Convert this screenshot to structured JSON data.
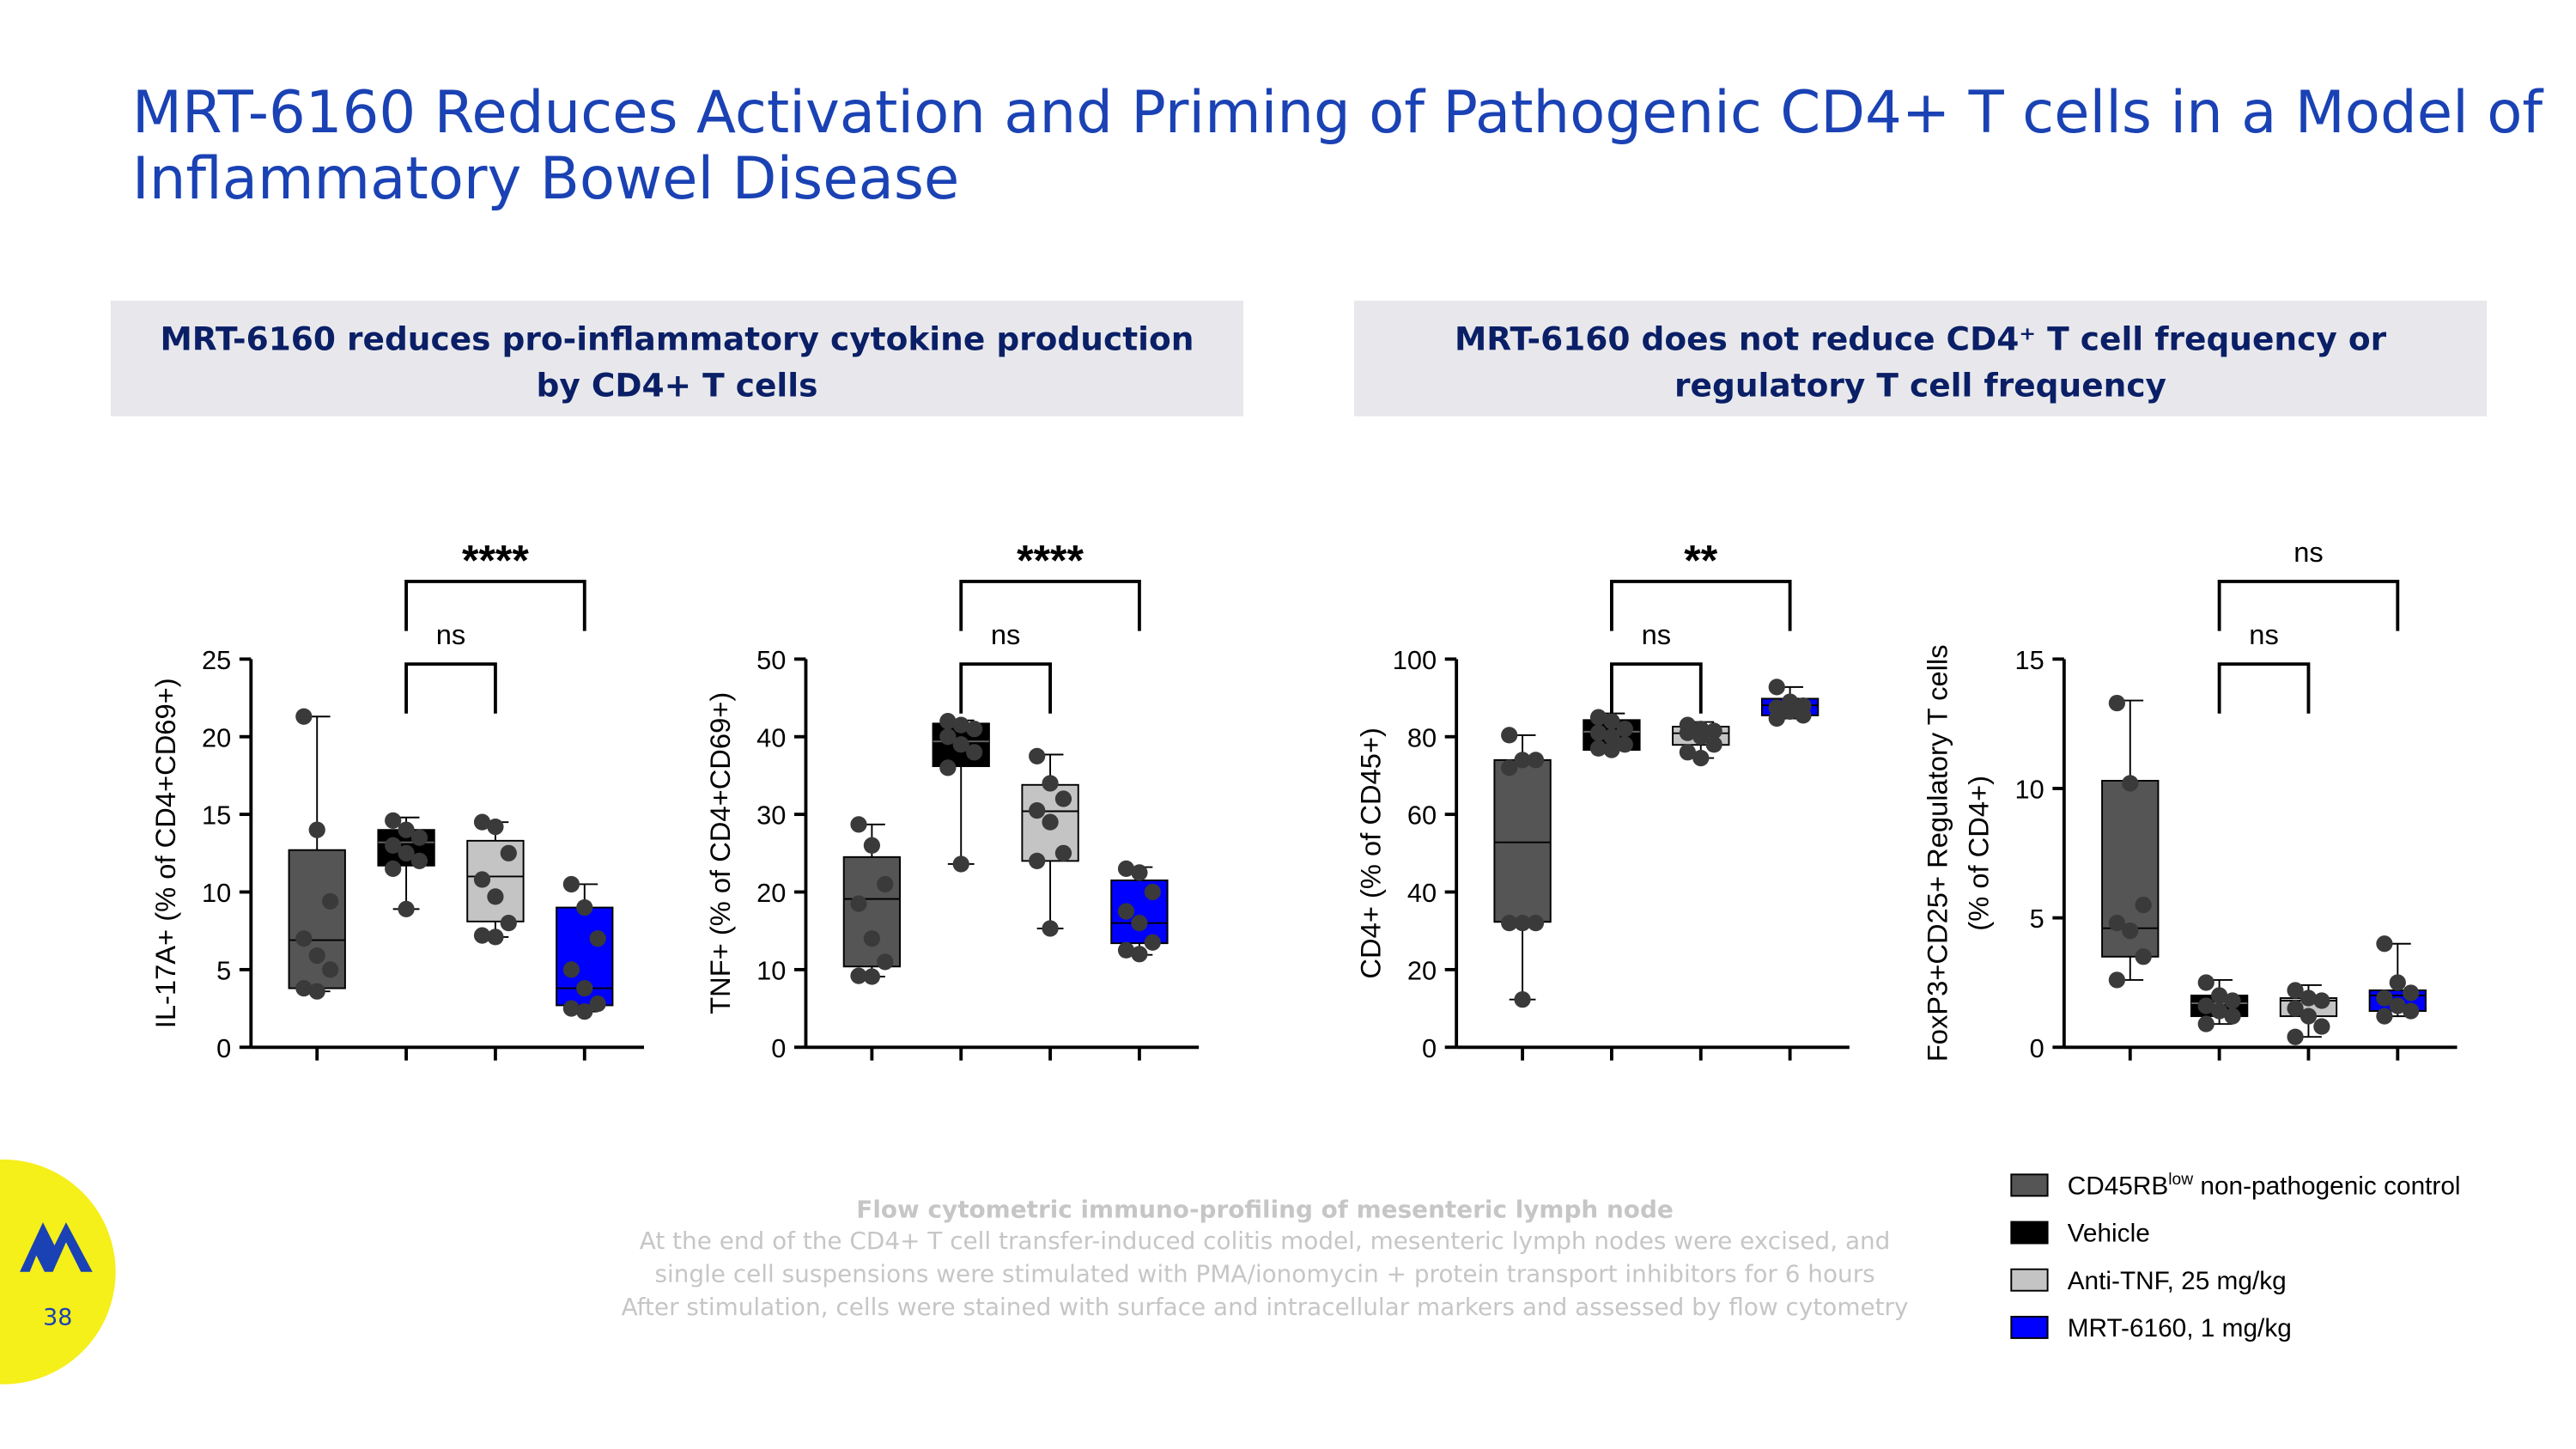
{
  "title": [
    "MRT-6160 Reduces Activation and Priming of Pathogenic CD4+ T cells in a Model of",
    "Inflammatory Bowel Disease"
  ],
  "panels": [
    {
      "heading": [
        "MRT-6160 reduces pro-inflammatory cytokine production",
        "by CD4+ T cells"
      ]
    },
    {
      "heading": [
        "MRT-6160 does not reduce CD4⁺ T cell frequency or",
        "regulatory T cell frequency"
      ]
    }
  ],
  "legend": [
    {
      "name": "CD45RB",
      "superscript": "low",
      "suffix": " non-pathogenic control",
      "color": "#555555"
    },
    {
      "name": "Vehicle",
      "color": "#000000"
    },
    {
      "name": "Anti-TNF, 25 mg/kg",
      "color": "#c4c4c4"
    },
    {
      "name": "MRT-6160, 1 mg/kg",
      "color": "#0000ff"
    }
  ],
  "footnote": {
    "heading": "Flow cytometric immuno-profiling of mesenteric lymph node",
    "lines": [
      "At the end of the CD4+ T cell transfer-induced colitis model, mesenteric lymph nodes were excised, and",
      "single cell suspensions were stimulated with PMA/ionomycin + protein transport inhibitors for 6 hours",
      "After stimulation, cells were stained with surface and intracellular markers and assessed by flow cytometry"
    ]
  },
  "page_number": "38",
  "chart_data": [
    {
      "type": "box",
      "ylabel": [
        "IL-17A+ (% of CD4+CD69+)"
      ],
      "ylim": [
        0,
        25
      ],
      "yticks": [
        0,
        5,
        10,
        15,
        20,
        25
      ],
      "boxes": [
        {
          "min": 3.6,
          "q1": 3.8,
          "median": 6.9,
          "q3": 12.7,
          "max": 21.3,
          "points": [
            21.3,
            14.0,
            9.4,
            7.0,
            5.9,
            5.0,
            3.8,
            3.6
          ]
        },
        {
          "min": 8.9,
          "q1": 11.7,
          "median": 13.2,
          "q3": 14.0,
          "max": 14.8,
          "points": [
            14.6,
            14.0,
            13.5,
            13.0,
            12.5,
            12.0,
            11.5,
            8.9
          ]
        },
        {
          "min": 7.1,
          "q1": 8.1,
          "median": 11.0,
          "q3": 13.3,
          "max": 14.5,
          "points": [
            14.5,
            14.2,
            12.5,
            10.8,
            9.7,
            8.0,
            7.2,
            7.1
          ]
        },
        {
          "min": 2.3,
          "q1": 2.7,
          "median": 3.8,
          "q3": 9.0,
          "max": 10.5,
          "points": [
            10.5,
            9.0,
            7.0,
            5.0,
            3.8,
            2.8,
            2.5,
            2.3
          ]
        }
      ],
      "brackets": [
        {
          "from": 1,
          "to": 2,
          "label": "ns"
        },
        {
          "from": 1,
          "to": 3,
          "label": "****"
        }
      ]
    },
    {
      "type": "box",
      "ylabel": [
        "TNF+ (% of CD4+CD69+)"
      ],
      "ylim": [
        0,
        50
      ],
      "yticks": [
        0,
        10,
        20,
        30,
        40,
        50
      ],
      "boxes": [
        {
          "min": 9.1,
          "q1": 10.4,
          "median": 19.1,
          "q3": 24.5,
          "max": 28.7,
          "points": [
            28.7,
            26.0,
            21.0,
            18.5,
            14.0,
            11.0,
            9.2,
            9.1
          ]
        },
        {
          "min": 23.6,
          "q1": 36.2,
          "median": 39.4,
          "q3": 41.7,
          "max": 42.1,
          "points": [
            42.0,
            41.5,
            41.0,
            40.0,
            39.0,
            38.0,
            36.0,
            23.6
          ]
        },
        {
          "min": 15.3,
          "q1": 24.0,
          "median": 30.4,
          "q3": 33.8,
          "max": 37.7,
          "points": [
            37.5,
            34.0,
            32.0,
            30.5,
            29.0,
            25.0,
            24.0,
            15.3
          ]
        },
        {
          "min": 11.9,
          "q1": 13.4,
          "median": 16.0,
          "q3": 21.5,
          "max": 23.2,
          "points": [
            23.0,
            22.5,
            20.0,
            17.5,
            16.0,
            13.5,
            12.5,
            12.0
          ]
        }
      ],
      "brackets": [
        {
          "from": 1,
          "to": 2,
          "label": "ns"
        },
        {
          "from": 1,
          "to": 3,
          "label": "****"
        }
      ]
    },
    {
      "type": "box",
      "ylabel": [
        "CD4+ (% of CD45+)"
      ],
      "ylim": [
        0,
        100
      ],
      "yticks": [
        0,
        20,
        40,
        60,
        80,
        100
      ],
      "boxes": [
        {
          "min": 12.3,
          "q1": 32.3,
          "median": 52.8,
          "q3": 74.0,
          "max": 80.4,
          "points": [
            80.4,
            74.0,
            74.0,
            72.0,
            32.0,
            32.0,
            32.0,
            12.3
          ]
        },
        {
          "min": 76.6,
          "q1": 76.6,
          "median": 81.3,
          "q3": 84.3,
          "max": 86.0,
          "points": [
            85.0,
            84.0,
            82.0,
            81.0,
            80.0,
            78.0,
            77.0,
            76.6
          ]
        },
        {
          "min": 74.5,
          "q1": 77.9,
          "median": 80.9,
          "q3": 82.6,
          "max": 83.8,
          "points": [
            83.0,
            82.0,
            81.5,
            81.0,
            80.0,
            78.0,
            76.0,
            74.5
          ]
        },
        {
          "min": 84.7,
          "q1": 85.5,
          "median": 88.1,
          "q3": 89.8,
          "max": 92.8,
          "points": [
            92.8,
            89.0,
            88.0,
            87.5,
            86.5,
            85.5,
            84.7
          ]
        }
      ],
      "brackets": [
        {
          "from": 1,
          "to": 2,
          "label": "ns"
        },
        {
          "from": 1,
          "to": 3,
          "label": "**"
        }
      ]
    },
    {
      "type": "box",
      "ylabel": [
        "FoxP3+CD25+ Regulatory T cells",
        "(% of CD4+)"
      ],
      "ylim": [
        0,
        15
      ],
      "yticks": [
        0,
        5,
        10,
        15
      ],
      "boxes": [
        {
          "min": 2.6,
          "q1": 3.5,
          "median": 4.6,
          "q3": 10.3,
          "max": 13.4,
          "points": [
            13.3,
            10.2,
            5.5,
            4.8,
            4.5,
            3.5,
            2.6
          ]
        },
        {
          "min": 0.9,
          "q1": 1.2,
          "median": 1.7,
          "q3": 2.0,
          "max": 2.6,
          "points": [
            2.5,
            2.0,
            1.8,
            1.6,
            1.4,
            1.2,
            0.9
          ]
        },
        {
          "min": 0.4,
          "q1": 1.2,
          "median": 1.8,
          "q3": 1.9,
          "max": 2.4,
          "points": [
            2.2,
            1.9,
            1.8,
            1.5,
            1.2,
            0.8,
            0.4
          ]
        },
        {
          "min": 1.2,
          "q1": 1.4,
          "median": 2.0,
          "q3": 2.2,
          "max": 4.0,
          "points": [
            4.0,
            2.5,
            2.1,
            1.9,
            1.6,
            1.4,
            1.2
          ]
        }
      ],
      "brackets": [
        {
          "from": 1,
          "to": 2,
          "label": "ns"
        },
        {
          "from": 1,
          "to": 3,
          "label": "ns"
        }
      ]
    }
  ]
}
